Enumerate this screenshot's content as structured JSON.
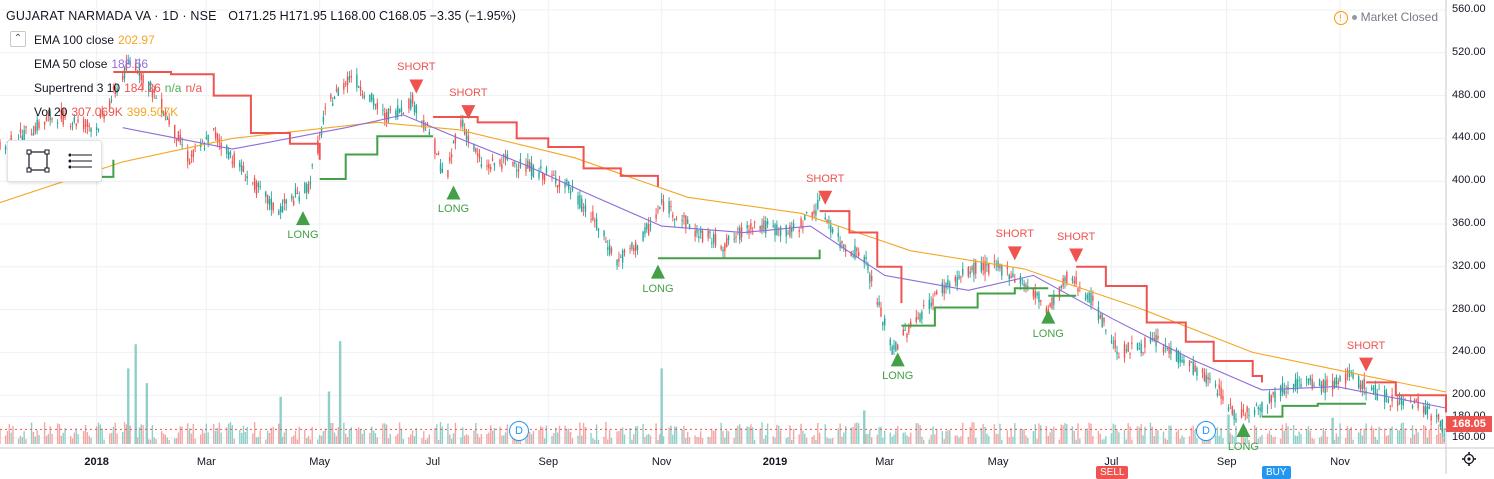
{
  "header": {
    "symbol": "GUJARAT NARMADA VA · 1D · NSE",
    "ohlc": "O171.25 H171.95 L168.00 C168.05",
    "change": "−3.35 (−1.95%)"
  },
  "market_status": "Market Closed",
  "indicators": [
    {
      "label": "EMA 100 close",
      "value": "202.97"
    },
    {
      "label": "EMA 50 close",
      "value": "188.56"
    },
    {
      "label": "Supertrend 3 10",
      "value": "184.26",
      "na1": "n/a",
      "na2": "n/a"
    },
    {
      "label": "Vol 20",
      "value_a": "307.069K",
      "value_b": "399.507K"
    }
  ],
  "toolbox": {
    "icons": [
      "rectangle-select-icon",
      "list-lines-icon"
    ]
  },
  "last_price": "168.05",
  "markers": {
    "d": "D"
  },
  "bottom_cut_labels": [
    "SELL",
    "BUY"
  ],
  "colors": {
    "up": "#26a69a",
    "down": "#ef5350",
    "ema100": "#f5a623",
    "ema50": "#8e6cd9",
    "st_up": "#43a047",
    "st_dn": "#ef5350",
    "vol_up": "#8fcfc8",
    "vol_dn": "#f1a7a5",
    "grid": "#eef0f3"
  },
  "chart_data": {
    "type": "candlestick",
    "y_ticks": [
      "560.00",
      "520.00",
      "480.00",
      "440.00",
      "400.00",
      "360.00",
      "320.00",
      "280.00",
      "240.00",
      "200.00",
      "180.00",
      "160.00"
    ],
    "x_ticks": [
      {
        "label": "2018",
        "bold": true,
        "date": "2018-01-01"
      },
      {
        "label": "Mar",
        "bold": false,
        "date": "2018-03-01"
      },
      {
        "label": "May",
        "bold": false,
        "date": "2018-05-01"
      },
      {
        "label": "Jul",
        "bold": false,
        "date": "2018-07-01"
      },
      {
        "label": "Sep",
        "bold": false,
        "date": "2018-09-01"
      },
      {
        "label": "Nov",
        "bold": false,
        "date": "2018-11-01"
      },
      {
        "label": "2019",
        "bold": true,
        "date": "2019-01-01"
      },
      {
        "label": "Mar",
        "bold": false,
        "date": "2019-03-01"
      },
      {
        "label": "May",
        "bold": false,
        "date": "2019-05-01"
      },
      {
        "label": "Jul",
        "bold": false,
        "date": "2019-07-01"
      },
      {
        "label": "Sep",
        "bold": false,
        "date": "2019-09-01"
      },
      {
        "label": "Nov",
        "bold": false,
        "date": "2019-11-01"
      }
    ],
    "ylim": [
      160,
      560
    ],
    "xlim": [
      "2017-11-10",
      "2019-12-28"
    ],
    "price_path": [
      [
        "2017-11-10",
        430
      ],
      [
        "2017-12-10",
        462
      ],
      [
        "2018-01-01",
        450
      ],
      [
        "2018-01-20",
        515
      ],
      [
        "2018-02-05",
        470
      ],
      [
        "2018-02-20",
        420
      ],
      [
        "2018-03-05",
        445
      ],
      [
        "2018-03-25",
        400
      ],
      [
        "2018-04-08",
        372
      ],
      [
        "2018-04-25",
        395
      ],
      [
        "2018-05-05",
        470
      ],
      [
        "2018-05-18",
        500
      ],
      [
        "2018-06-05",
        460
      ],
      [
        "2018-06-20",
        475
      ],
      [
        "2018-07-01",
        438
      ],
      [
        "2018-07-08",
        398
      ],
      [
        "2018-07-15",
        460
      ],
      [
        "2018-07-28",
        412
      ],
      [
        "2018-08-10",
        420
      ],
      [
        "2018-08-25",
        410
      ],
      [
        "2018-09-10",
        398
      ],
      [
        "2018-09-25",
        365
      ],
      [
        "2018-10-08",
        325
      ],
      [
        "2018-10-20",
        342
      ],
      [
        "2018-11-02",
        380
      ],
      [
        "2018-11-20",
        352
      ],
      [
        "2018-12-05",
        340
      ],
      [
        "2018-12-20",
        360
      ],
      [
        "2019-01-10",
        352
      ],
      [
        "2019-01-25",
        378
      ],
      [
        "2019-02-05",
        342
      ],
      [
        "2019-02-18",
        330
      ],
      [
        "2019-02-25",
        288
      ],
      [
        "2019-03-05",
        242
      ],
      [
        "2019-03-15",
        265
      ],
      [
        "2019-04-01",
        300
      ],
      [
        "2019-04-20",
        320
      ],
      [
        "2019-05-05",
        318
      ],
      [
        "2019-05-18",
        300
      ],
      [
        "2019-05-28",
        280
      ],
      [
        "2019-06-08",
        312
      ],
      [
        "2019-06-20",
        290
      ],
      [
        "2019-07-05",
        240
      ],
      [
        "2019-07-25",
        250
      ],
      [
        "2019-08-10",
        232
      ],
      [
        "2019-08-28",
        205
      ],
      [
        "2019-09-05",
        182
      ],
      [
        "2019-09-20",
        190
      ],
      [
        "2019-10-05",
        212
      ],
      [
        "2019-10-25",
        208
      ],
      [
        "2019-11-05",
        218
      ],
      [
        "2019-11-25",
        198
      ],
      [
        "2019-12-15",
        192
      ],
      [
        "2019-12-28",
        168
      ]
    ],
    "ema100": [
      [
        "2017-11-10",
        380
      ],
      [
        "2018-01-15",
        418
      ],
      [
        "2018-03-15",
        440
      ],
      [
        "2018-06-01",
        455
      ],
      [
        "2018-07-15",
        448
      ],
      [
        "2018-09-15",
        422
      ],
      [
        "2018-11-15",
        385
      ],
      [
        "2019-01-15",
        370
      ],
      [
        "2019-03-15",
        335
      ],
      [
        "2019-05-15",
        318
      ],
      [
        "2019-07-15",
        282
      ],
      [
        "2019-09-15",
        240
      ],
      [
        "2019-11-15",
        218
      ],
      [
        "2019-12-28",
        203
      ]
    ],
    "ema50": [
      [
        "2018-01-15",
        450
      ],
      [
        "2018-03-15",
        430
      ],
      [
        "2018-05-15",
        450
      ],
      [
        "2018-06-15",
        462
      ],
      [
        "2018-07-15",
        440
      ],
      [
        "2018-08-20",
        415
      ],
      [
        "2018-09-20",
        390
      ],
      [
        "2018-11-01",
        358
      ],
      [
        "2018-12-15",
        352
      ],
      [
        "2019-01-20",
        358
      ],
      [
        "2019-03-01",
        312
      ],
      [
        "2019-04-15",
        298
      ],
      [
        "2019-05-20",
        312
      ],
      [
        "2019-07-01",
        272
      ],
      [
        "2019-08-15",
        232
      ],
      [
        "2019-09-20",
        205
      ],
      [
        "2019-10-30",
        208
      ],
      [
        "2019-12-28",
        188
      ]
    ],
    "supertrend": [
      {
        "trend": "up",
        "points": [
          [
            "2017-11-15",
            404
          ],
          [
            "2018-01-10",
            404
          ],
          [
            "2018-01-10",
            420
          ]
        ]
      },
      {
        "trend": "down",
        "points": [
          [
            "2018-01-10",
            502
          ],
          [
            "2018-02-10",
            500
          ],
          [
            "2018-03-05",
            480
          ],
          [
            "2018-03-25",
            445
          ],
          [
            "2018-04-15",
            435
          ],
          [
            "2018-05-01",
            420
          ]
        ]
      },
      {
        "trend": "up",
        "points": [
          [
            "2018-05-01",
            402
          ],
          [
            "2018-05-15",
            425
          ],
          [
            "2018-06-01",
            442
          ],
          [
            "2018-07-01",
            442
          ]
        ]
      },
      {
        "trend": "down",
        "points": [
          [
            "2018-07-01",
            460
          ],
          [
            "2018-07-25",
            455
          ],
          [
            "2018-08-15",
            440
          ],
          [
            "2018-09-01",
            432
          ],
          [
            "2018-09-20",
            412
          ],
          [
            "2018-10-10",
            405
          ],
          [
            "2018-10-30",
            395
          ]
        ]
      },
      {
        "trend": "up",
        "points": [
          [
            "2018-10-30",
            328
          ],
          [
            "2018-11-15",
            328
          ],
          [
            "2019-01-25",
            336
          ]
        ]
      },
      {
        "trend": "down",
        "points": [
          [
            "2019-01-25",
            372
          ],
          [
            "2019-02-10",
            352
          ],
          [
            "2019-02-25",
            320
          ],
          [
            "2019-03-10",
            286
          ]
        ]
      },
      {
        "trend": "up",
        "points": [
          [
            "2019-03-10",
            265
          ],
          [
            "2019-03-28",
            282
          ],
          [
            "2019-04-20",
            295
          ],
          [
            "2019-05-10",
            300
          ],
          [
            "2019-05-28",
            300
          ]
        ]
      },
      {
        "trend": "up",
        "points": [
          [
            "2019-05-28",
            293
          ],
          [
            "2019-06-12",
            293
          ]
        ]
      },
      {
        "trend": "down",
        "points": [
          [
            "2019-06-12",
            320
          ],
          [
            "2019-06-28",
            302
          ],
          [
            "2019-07-20",
            268
          ],
          [
            "2019-08-10",
            250
          ],
          [
            "2019-08-25",
            232
          ],
          [
            "2019-09-15",
            218
          ],
          [
            "2019-09-20",
            212
          ]
        ]
      },
      {
        "trend": "up",
        "points": [
          [
            "2019-09-20",
            180
          ],
          [
            "2019-10-01",
            190
          ],
          [
            "2019-10-20",
            192
          ],
          [
            "2019-11-15",
            192
          ]
        ]
      },
      {
        "trend": "down",
        "points": [
          [
            "2019-11-15",
            212
          ],
          [
            "2019-12-01",
            200
          ],
          [
            "2019-12-28",
            184
          ]
        ]
      }
    ],
    "signals": [
      {
        "type": "SHORT",
        "date": "2018-06-22",
        "price": 482
      },
      {
        "type": "SHORT",
        "date": "2018-07-20",
        "price": 458
      },
      {
        "type": "LONG",
        "date": "2018-04-22",
        "price": 372
      },
      {
        "type": "LONG",
        "date": "2018-07-12",
        "price": 396
      },
      {
        "type": "LONG",
        "date": "2018-10-30",
        "price": 322
      },
      {
        "type": "SHORT",
        "date": "2019-01-28",
        "price": 378
      },
      {
        "type": "LONG",
        "date": "2019-03-08",
        "price": 240
      },
      {
        "type": "SHORT",
        "date": "2019-05-10",
        "price": 326
      },
      {
        "type": "SHORT",
        "date": "2019-06-12",
        "price": 324
      },
      {
        "type": "LONG",
        "date": "2019-05-28",
        "price": 280
      },
      {
        "type": "LONG",
        "date": "2019-09-10",
        "price": 174
      },
      {
        "type": "SHORT",
        "date": "2019-11-15",
        "price": 222
      }
    ],
    "volume_spikes": [
      [
        "2018-01-18",
        0.72
      ],
      [
        "2018-01-22",
        0.95
      ],
      [
        "2018-01-28",
        0.58
      ],
      [
        "2018-04-10",
        0.45
      ],
      [
        "2018-05-12",
        0.98
      ],
      [
        "2018-05-06",
        0.5
      ],
      [
        "2018-11-01",
        0.72
      ],
      [
        "2019-02-18",
        0.32
      ],
      [
        "2019-09-02",
        0.28
      ],
      [
        "2019-10-28",
        0.25
      ]
    ],
    "d_markers": [
      "2018-09-01",
      "2019-09-01"
    ]
  }
}
